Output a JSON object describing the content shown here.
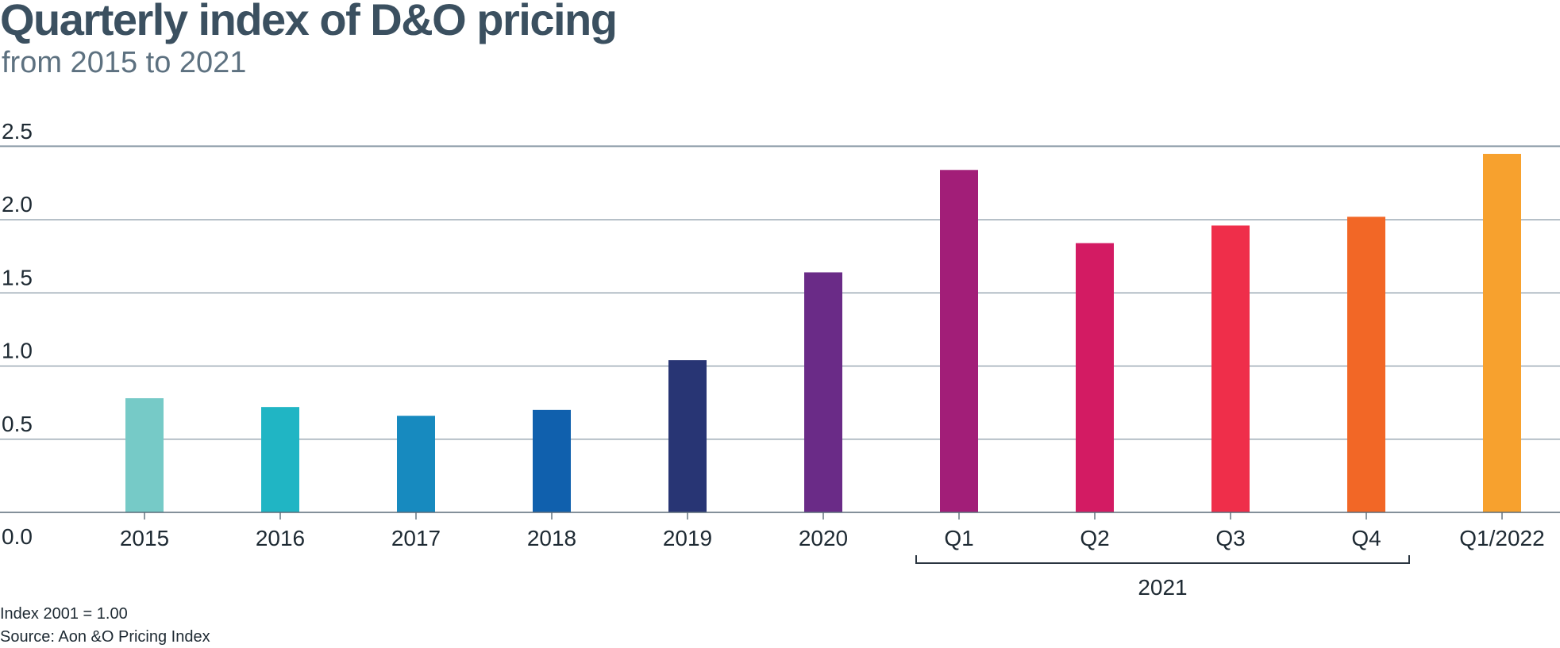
{
  "title": "Quarterly index of D&O pricing",
  "subtitle": "from 2015 to 2021",
  "notes": {
    "index_base": "Index 2001 = 1.00",
    "source": "Source: Aon &O Pricing Index"
  },
  "chart_data": {
    "type": "bar",
    "categories": [
      "2015",
      "2016",
      "2017",
      "2018",
      "2019",
      "2020",
      "Q1",
      "Q2",
      "Q3",
      "Q4",
      "Q1/2022"
    ],
    "values": [
      0.78,
      0.72,
      0.66,
      0.7,
      1.04,
      1.64,
      2.34,
      1.84,
      1.96,
      2.02,
      2.45
    ],
    "colors": [
      "#76cac7",
      "#20b5c4",
      "#178abf",
      "#1060ad",
      "#283574",
      "#6a2b87",
      "#a21e78",
      "#d31b63",
      "#ef2e4a",
      "#f26726",
      "#f7a12e"
    ],
    "y_ticks": [
      "0.0",
      "0.5",
      "1.0",
      "1.5",
      "2.0",
      "2.5"
    ],
    "ylim": [
      0,
      2.5
    ],
    "group_bracket": {
      "label": "2021",
      "from": "Q1",
      "to": "Q4"
    },
    "grid": true,
    "xlabel": "",
    "ylabel": ""
  }
}
